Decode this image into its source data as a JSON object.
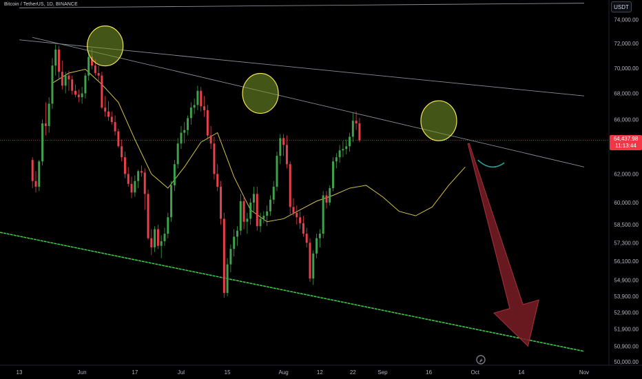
{
  "header": {
    "symbol": "Bitcoin / TetherUS, 1D, BINANCE",
    "currency_button": "USDT"
  },
  "price_tag": {
    "price": "64,437.98",
    "countdown": "11:13:44"
  },
  "colors": {
    "up": "#26a69a",
    "up_fill": "#3fa34d",
    "down": "#e8414e",
    "ma": "#d4c24a",
    "channel": "#3ec94a",
    "trendline": "#8a8d96",
    "circle_fill": "#7a9a2a",
    "circle_stroke": "#f3e55a",
    "arrow_fill": "#7a1c25",
    "arrow_stroke": "#a8323e"
  },
  "chart_data": {
    "type": "candlestick",
    "title": "Bitcoin / TetherUS, 1D, BINANCE",
    "yaxis": {
      "ticks": [
        74000,
        72000,
        70000,
        68000,
        66000,
        62000,
        60000,
        58500,
        57300,
        56100,
        54900,
        53900,
        52900,
        51900,
        50900,
        50000
      ],
      "tick_labels": [
        "74,000.00",
        "72,000.00",
        "70,000.00",
        "68,000.00",
        "66,000.00",
        "62,000.00",
        "60,000.00",
        "58,500.00",
        "57,300.00",
        "56,100.00",
        "54,900.00",
        "53,900.00",
        "52,900.00",
        "51,900.00",
        "50,900.00",
        "50,000.00"
      ],
      "scale": "log",
      "range": [
        49800,
        75200
      ]
    },
    "xaxis": {
      "tick_labels": [
        "13",
        "Jun",
        "17",
        "Jul",
        "15",
        "Aug",
        "12",
        "22",
        "Sep",
        "16",
        "Oct",
        "14",
        "Nov"
      ],
      "tick_days": [
        0,
        19,
        35,
        49,
        63,
        80,
        91,
        101,
        110,
        124,
        138,
        152,
        171
      ],
      "start_date": "2024-05-13"
    },
    "candles": [
      [
        63000,
        63200,
        61000,
        61500
      ],
      [
        61500,
        62200,
        60700,
        61100
      ],
      [
        61100,
        63000,
        60800,
        62900
      ],
      [
        62900,
        66000,
        62600,
        65700
      ],
      [
        65700,
        67300,
        64800,
        65500
      ],
      [
        65500,
        67700,
        65000,
        67200
      ],
      [
        67200,
        70800,
        66800,
        70200
      ],
      [
        70200,
        71900,
        69400,
        71500
      ],
      [
        71500,
        71800,
        69100,
        69700
      ],
      [
        69700,
        70600,
        68300,
        68600
      ],
      [
        68600,
        69700,
        68000,
        69400
      ],
      [
        69400,
        69800,
        68200,
        69100
      ],
      [
        69100,
        69400,
        67900,
        68200
      ],
      [
        68200,
        68700,
        67700,
        67900
      ],
      [
        67900,
        68300,
        67300,
        67700
      ],
      [
        67700,
        68500,
        67200,
        68000
      ],
      [
        68000,
        69600,
        67600,
        69400
      ],
      [
        69400,
        71400,
        69000,
        70900
      ],
      [
        70900,
        71600,
        69900,
        70200
      ],
      [
        70200,
        70700,
        69400,
        69600
      ],
      [
        69600,
        70200,
        69000,
        69400
      ],
      [
        69400,
        69700,
        66800,
        66900
      ],
      [
        66900,
        67800,
        66200,
        66600
      ],
      [
        66600,
        67400,
        65900,
        66200
      ],
      [
        66200,
        66600,
        65600,
        65800
      ],
      [
        65800,
        66300,
        64800,
        65100
      ],
      [
        65100,
        65300,
        63900,
        64000
      ],
      [
        64000,
        64500,
        62900,
        63200
      ],
      [
        63200,
        63600,
        61700,
        62000
      ],
      [
        62000,
        62500,
        61100,
        61300
      ],
      [
        61300,
        61800,
        60300,
        60700
      ],
      [
        60700,
        61900,
        60400,
        61500
      ],
      [
        61500,
        62300,
        61000,
        62200
      ],
      [
        62200,
        62600,
        61800,
        62100
      ],
      [
        62100,
        62400,
        59500,
        60600
      ],
      [
        60600,
        60900,
        57500,
        57600
      ],
      [
        57600,
        58200,
        56500,
        57000
      ],
      [
        57000,
        58400,
        56700,
        58200
      ],
      [
        58200,
        58500,
        56900,
        57100
      ],
      [
        57100,
        57800,
        56300,
        57400
      ],
      [
        57400,
        58300,
        57100,
        57900
      ],
      [
        57900,
        59300,
        57600,
        59000
      ],
      [
        59000,
        61500,
        58700,
        61200
      ],
      [
        61200,
        63000,
        60800,
        62700
      ],
      [
        62700,
        64600,
        62400,
        64200
      ],
      [
        64200,
        65500,
        63800,
        65000
      ],
      [
        65000,
        65800,
        64200,
        65200
      ],
      [
        65200,
        66300,
        64800,
        66100
      ],
      [
        66100,
        67300,
        65600,
        66900
      ],
      [
        66900,
        67600,
        66400,
        67100
      ],
      [
        67100,
        68600,
        66700,
        68200
      ],
      [
        68200,
        68500,
        66600,
        67000
      ],
      [
        67000,
        67800,
        66200,
        66700
      ],
      [
        66700,
        67100,
        64500,
        64800
      ],
      [
        64800,
        65500,
        63800,
        64200
      ],
      [
        64200,
        64700,
        61600,
        62000
      ],
      [
        62000,
        62700,
        60800,
        61100
      ],
      [
        61100,
        61500,
        58500,
        58900
      ],
      [
        58900,
        59300,
        53800,
        54100
      ],
      [
        54100,
        56300,
        53900,
        55900
      ],
      [
        55900,
        57200,
        55400,
        56900
      ],
      [
        56900,
        58200,
        56400,
        57700
      ],
      [
        57700,
        58400,
        57100,
        58100
      ],
      [
        58100,
        60600,
        57800,
        60100
      ],
      [
        60100,
        60400,
        58200,
        58700
      ],
      [
        58700,
        59300,
        57900,
        58900
      ],
      [
        58900,
        60300,
        58500,
        60000
      ],
      [
        60000,
        61100,
        59400,
        60600
      ],
      [
        60600,
        61100,
        58100,
        58400
      ],
      [
        58400,
        59300,
        58000,
        58900
      ],
      [
        58900,
        59400,
        58600,
        59100
      ],
      [
        59100,
        59800,
        58400,
        59400
      ],
      [
        59400,
        60500,
        59100,
        60200
      ],
      [
        60200,
        61500,
        59900,
        61100
      ],
      [
        61100,
        63600,
        60800,
        63300
      ],
      [
        63300,
        64900,
        62700,
        64600
      ],
      [
        64600,
        64900,
        63300,
        64100
      ],
      [
        64100,
        64800,
        62400,
        62700
      ],
      [
        62700,
        62900,
        59200,
        59700
      ],
      [
        59700,
        60300,
        59100,
        59300
      ],
      [
        59300,
        59800,
        58500,
        59000
      ],
      [
        59000,
        59400,
        58200,
        58600
      ],
      [
        58600,
        59100,
        57700,
        57900
      ],
      [
        57900,
        58300,
        57000,
        57300
      ],
      [
        57300,
        57600,
        54800,
        55000
      ],
      [
        55000,
        56800,
        54600,
        56600
      ],
      [
        56600,
        57900,
        56300,
        57600
      ],
      [
        57600,
        58200,
        57000,
        57900
      ],
      [
        57900,
        60800,
        57600,
        60500
      ],
      [
        60500,
        60800,
        59600,
        60000
      ],
      [
        60000,
        61200,
        59800,
        61000
      ],
      [
        61000,
        63200,
        60800,
        62900
      ],
      [
        62900,
        63500,
        62400,
        63200
      ],
      [
        63200,
        64100,
        62800,
        63700
      ],
      [
        63700,
        64400,
        63200,
        63800
      ],
      [
        63800,
        64500,
        63400,
        64000
      ],
      [
        64000,
        65000,
        63600,
        64700
      ],
      [
        64700,
        66500,
        64300,
        65900
      ],
      [
        65900,
        66600,
        65200,
        65700
      ],
      [
        65700,
        66100,
        64300,
        64438
      ]
    ],
    "candle_start_day": 4,
    "moving_average": {
      "days": [
        10,
        15,
        20,
        25,
        30,
        35,
        40,
        45,
        50,
        55,
        60,
        65,
        70,
        75,
        80,
        85,
        90,
        95,
        100,
        105,
        110,
        115,
        120,
        125,
        130,
        135
      ],
      "values": [
        68800,
        69600,
        69900,
        68700,
        67300,
        64500,
        62000,
        61000,
        62500,
        64300,
        65000,
        61800,
        59500,
        58700,
        58900,
        59500,
        60100,
        60500,
        61000,
        61200,
        60400,
        59400,
        59100,
        59700,
        61200,
        62500
      ]
    },
    "trendlines": [
      {
        "from": [
          0,
          75000
        ],
        "to": [
          171,
          75400
        ]
      },
      {
        "from": [
          0,
          72300
        ],
        "to": [
          171,
          67800
        ]
      },
      {
        "from": [
          4,
          72500
        ],
        "to": [
          171,
          62500
        ]
      }
    ],
    "support_line": {
      "from": [
        0,
        57900
      ],
      "to": [
        171,
        50600
      ]
    },
    "highlight_circles": [
      {
        "day": 26,
        "price": 71800
      },
      {
        "day": 73,
        "price": 68000
      },
      {
        "day": 127,
        "price": 65900
      }
    ],
    "projection_arrow": {
      "from": [
        136,
        64200
      ],
      "to": [
        154,
        50900
      ]
    },
    "projection_curve": [
      [
        138,
        63000
      ],
      [
        142,
        62400
      ],
      [
        146,
        62800
      ]
    ]
  }
}
